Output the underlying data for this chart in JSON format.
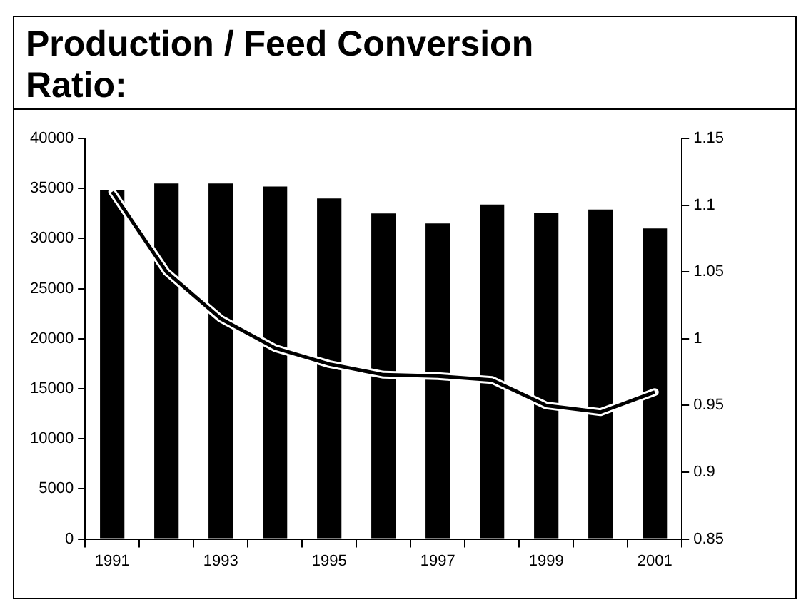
{
  "chart_data": {
    "type": "bar",
    "title": "Production / Feed Conversion Ratio:",
    "categories": [
      "1991",
      null,
      "1993",
      null,
      "1995",
      null,
      "1997",
      null,
      "1999",
      null,
      "2001"
    ],
    "series": [
      {
        "color": "#000000",
        "values": [
          34800,
          35500,
          35500,
          35200,
          34000,
          32500,
          31500,
          33400,
          32600,
          32900,
          31000
        ]
      },
      {
        "type": "line",
        "axis": "y2",
        "color": "#000000",
        "values": [
          1.11,
          1.05,
          1.015,
          0.993,
          0.981,
          0.973,
          0.972,
          0.969,
          0.95,
          0.945,
          0.96
        ]
      }
    ],
    "ylim": [
      0,
      40000
    ],
    "yticks": [
      0,
      5000,
      10000,
      15000,
      20000,
      25000,
      30000,
      35000,
      40000
    ],
    "y2lim": [
      0.85,
      1.15
    ],
    "y2ticks": [
      0.85,
      0.9,
      0.95,
      1,
      1.05,
      1.1,
      1.15
    ],
    "grid": false,
    "legend": false,
    "marker": "none",
    "line_style": "solid"
  }
}
